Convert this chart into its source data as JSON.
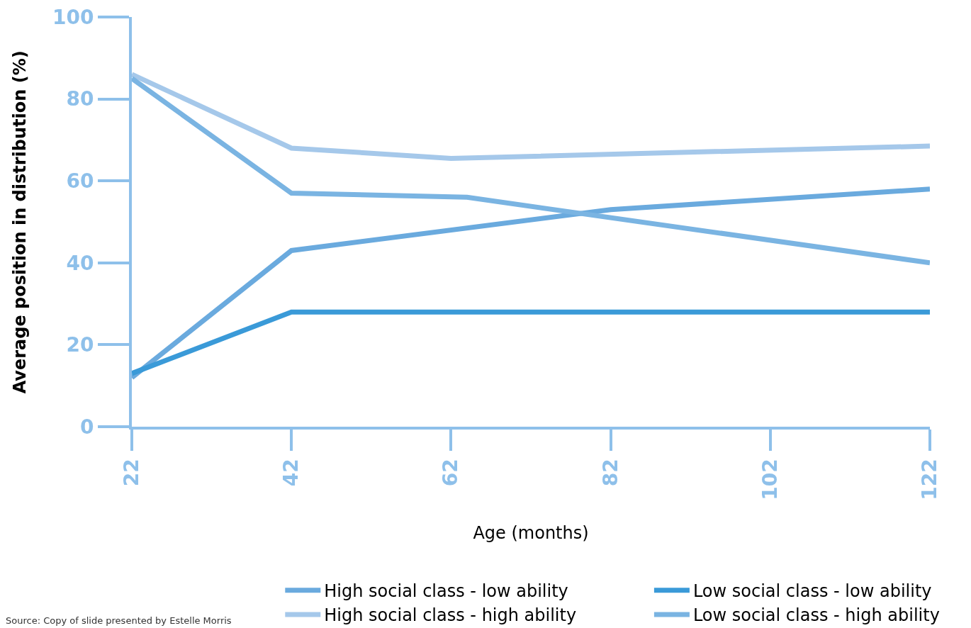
{
  "chart_data": {
    "type": "line",
    "xlabel": "Age (months)",
    "ylabel": "Average position in distribution (%)",
    "xlim": [
      22,
      122
    ],
    "xticks": [
      22,
      42,
      62,
      82,
      102,
      122
    ],
    "ylim": [
      0,
      100
    ],
    "yticks": [
      0,
      20,
      40,
      60,
      80,
      100
    ],
    "legend": "bottom",
    "marker": "none",
    "line_style": "solid",
    "series": [
      {
        "name": "High social class - low ability",
        "color": "#6aaade",
        "x": [
          22,
          42,
          82,
          122
        ],
        "values": [
          12,
          43,
          53,
          58
        ]
      },
      {
        "name": "Low social class - low ability",
        "color": "#3a9ad8",
        "x": [
          22,
          42,
          122
        ],
        "values": [
          13,
          28,
          28
        ]
      },
      {
        "name": "High social class - high ability",
        "color": "#a5c8ea",
        "x": [
          22,
          42,
          62,
          122
        ],
        "values": [
          86,
          68,
          65.5,
          68.5
        ]
      },
      {
        "name": "Low social class - high ability",
        "color": "#7ab4e2",
        "x": [
          22,
          42,
          64,
          122
        ],
        "values": [
          85,
          57,
          56,
          40
        ]
      }
    ],
    "annotations": [
      "Source: Copy of slide presented by Estelle Morris"
    ]
  }
}
